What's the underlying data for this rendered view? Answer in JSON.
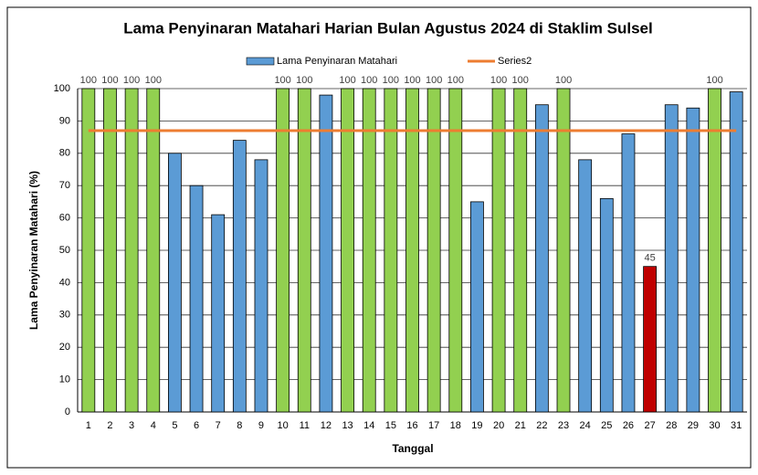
{
  "chart_data": {
    "type": "bar",
    "title": "Lama Penyinaran Matahari Harian Bulan Agustus 2024 di Staklim Sulsel",
    "x_label": "Tanggal",
    "y_label": "Lama Penyinaran Matahari (%)",
    "categories": [
      "1",
      "2",
      "3",
      "4",
      "5",
      "6",
      "7",
      "8",
      "9",
      "10",
      "11",
      "12",
      "13",
      "14",
      "15",
      "16",
      "17",
      "18",
      "19",
      "20",
      "21",
      "22",
      "23",
      "24",
      "25",
      "26",
      "27",
      "28",
      "29",
      "30",
      "31"
    ],
    "series": [
      {
        "name": "Lama Penyinaran Matahari",
        "color": "#5b9bd5",
        "values": [
          100,
          100,
          100,
          100,
          80,
          70,
          61,
          84,
          78,
          100,
          100,
          98,
          100,
          100,
          100,
          100,
          100,
          100,
          65,
          100,
          100,
          95,
          100,
          78,
          66,
          86,
          45,
          95,
          94,
          100,
          99
        ],
        "colors": [
          "#92d050",
          "#92d050",
          "#92d050",
          "#92d050",
          "#5b9bd5",
          "#5b9bd5",
          "#5b9bd5",
          "#5b9bd5",
          "#5b9bd5",
          "#92d050",
          "#92d050",
          "#5b9bd5",
          "#92d050",
          "#92d050",
          "#92d050",
          "#92d050",
          "#92d050",
          "#92d050",
          "#5b9bd5",
          "#92d050",
          "#92d050",
          "#5b9bd5",
          "#92d050",
          "#5b9bd5",
          "#5b9bd5",
          "#5b9bd5",
          "#c00000",
          "#5b9bd5",
          "#5b9bd5",
          "#92d050",
          "#5b9bd5"
        ],
        "value_labels": [
          "100",
          "100",
          "100",
          "100",
          null,
          null,
          null,
          null,
          null,
          "100",
          "100",
          null,
          "100",
          "100",
          "100",
          "100",
          "100",
          "100",
          null,
          "100",
          "100",
          null,
          "100",
          null,
          null,
          null,
          "45",
          null,
          null,
          "100",
          null
        ]
      },
      {
        "name": "Series2",
        "type": "line",
        "color": "#ed7d31",
        "values": [
          87,
          87,
          87,
          87,
          87,
          87,
          87,
          87,
          87,
          87,
          87,
          87,
          87,
          87,
          87,
          87,
          87,
          87,
          87,
          87,
          87,
          87,
          87,
          87,
          87,
          87,
          87,
          87,
          87,
          87,
          87
        ]
      }
    ],
    "ylim": [
      0,
      100
    ],
    "yticks": [
      0,
      10,
      20,
      30,
      40,
      50,
      60,
      70,
      80,
      90,
      100
    ],
    "grid": true,
    "legend": "top"
  }
}
